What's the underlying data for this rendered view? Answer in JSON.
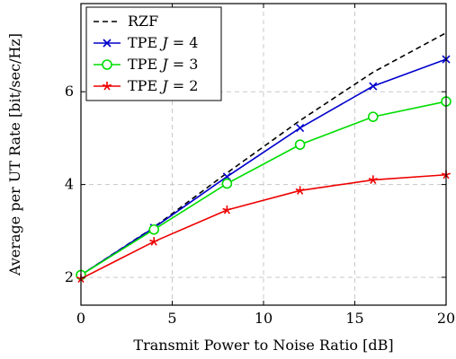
{
  "chart_data": {
    "type": "line",
    "title": "",
    "xlabel": "Transmit Power to Noise Ratio [dB]",
    "ylabel": "Average per UT Rate [bit/sec/Hz]",
    "xlim": [
      0,
      20
    ],
    "ylim": [
      1.4,
      7.9
    ],
    "xticks": [
      0,
      5,
      10,
      15,
      20
    ],
    "yticks": [
      2,
      4,
      6
    ],
    "grid": true,
    "legend_position": "top-left",
    "x": [
      0,
      4,
      8,
      12,
      16,
      20
    ],
    "series": [
      {
        "name": "RZF",
        "values": [
          2.05,
          3.08,
          4.25,
          5.38,
          6.42,
          7.27
        ],
        "color": "#000000",
        "dash": true,
        "marker": "none"
      },
      {
        "name": "TPE J = 4",
        "values": [
          2.05,
          3.07,
          4.17,
          5.22,
          6.12,
          6.7
        ],
        "color": "#0000cc",
        "dash": false,
        "marker": "x"
      },
      {
        "name": "TPE J = 3",
        "values": [
          2.05,
          3.03,
          4.02,
          4.86,
          5.46,
          5.79
        ],
        "color": "#00dd00",
        "dash": false,
        "marker": "circle"
      },
      {
        "name": "TPE J = 2",
        "values": [
          1.97,
          2.77,
          3.45,
          3.87,
          4.1,
          4.21
        ],
        "color": "#ee0000",
        "dash": false,
        "marker": "star"
      }
    ],
    "legend": [
      {
        "prefix": "RZF",
        "var": "",
        "suffix": ""
      },
      {
        "prefix": "TPE ",
        "var": "J",
        "suffix": " = 4"
      },
      {
        "prefix": "TPE ",
        "var": "J",
        "suffix": " = 3"
      },
      {
        "prefix": "TPE ",
        "var": "J",
        "suffix": " = 2"
      }
    ]
  }
}
